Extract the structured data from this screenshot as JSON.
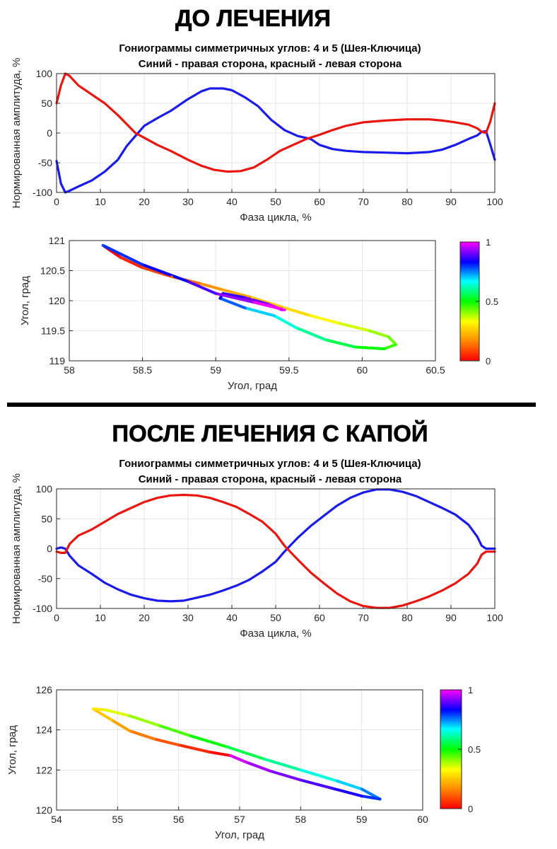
{
  "sections": [
    {
      "heading": "ДО ЛЕЧЕНИЯ"
    },
    {
      "heading": "ПОСЛЕ ЛЕЧЕНИЯ С КАПОЙ"
    }
  ],
  "colors": {
    "right_side": "#1a1aeb",
    "left_side": "#e8160f",
    "grid": "#e3e3e3",
    "axis": "#262626",
    "separator": "#000000"
  },
  "chart_data": [
    {
      "type": "line",
      "title": "Гониограммы симметричных углов:  4 и 5  (Шея-Ключица)",
      "subtitle": "Синий - правая сторона, красный - левая сторона",
      "xlabel": "Фаза цикла, %",
      "ylabel": "Нормированная амплитуда, %",
      "xlim": [
        0,
        100
      ],
      "ylim": [
        -100,
        100
      ],
      "xticks": [
        "0",
        "10",
        "20",
        "30",
        "40",
        "50",
        "60",
        "70",
        "80",
        "90",
        "100"
      ],
      "yticks": [
        "-100",
        "-50",
        "0",
        "50",
        "100"
      ],
      "grid": true,
      "series": [
        {
          "color": "#1a1aeb",
          "points": [
            [
              0,
              -47
            ],
            [
              1,
              -85
            ],
            [
              2,
              -100
            ],
            [
              3,
              -97
            ],
            [
              5,
              -90
            ],
            [
              8,
              -80
            ],
            [
              11,
              -65
            ],
            [
              14,
              -45
            ],
            [
              16,
              -22
            ],
            [
              18,
              -5
            ],
            [
              20,
              12
            ],
            [
              23,
              25
            ],
            [
              26,
              37
            ],
            [
              30,
              57
            ],
            [
              33,
              70
            ],
            [
              35,
              75
            ],
            [
              38,
              75
            ],
            [
              40,
              72
            ],
            [
              43,
              60
            ],
            [
              46,
              45
            ],
            [
              49,
              22
            ],
            [
              52,
              5
            ],
            [
              55,
              -5
            ],
            [
              58,
              -10
            ],
            [
              60,
              -20
            ],
            [
              63,
              -27
            ],
            [
              66,
              -30
            ],
            [
              70,
              -32
            ],
            [
              75,
              -33
            ],
            [
              80,
              -34
            ],
            [
              85,
              -32
            ],
            [
              88,
              -28
            ],
            [
              91,
              -20
            ],
            [
              94,
              -10
            ],
            [
              96,
              -4
            ],
            [
              97,
              2
            ],
            [
              98,
              3
            ],
            [
              99,
              -20
            ],
            [
              100,
              -45
            ]
          ]
        },
        {
          "color": "#e8160f",
          "points": [
            [
              0,
              50
            ],
            [
              1,
              80
            ],
            [
              2,
              100
            ],
            [
              3,
              96
            ],
            [
              5,
              80
            ],
            [
              8,
              65
            ],
            [
              11,
              50
            ],
            [
              14,
              30
            ],
            [
              16,
              15
            ],
            [
              18,
              0
            ],
            [
              20,
              -8
            ],
            [
              23,
              -20
            ],
            [
              26,
              -30
            ],
            [
              30,
              -45
            ],
            [
              33,
              -55
            ],
            [
              36,
              -62
            ],
            [
              39,
              -65
            ],
            [
              42,
              -64
            ],
            [
              45,
              -58
            ],
            [
              48,
              -45
            ],
            [
              51,
              -30
            ],
            [
              54,
              -20
            ],
            [
              57,
              -10
            ],
            [
              60,
              -3
            ],
            [
              63,
              5
            ],
            [
              66,
              12
            ],
            [
              70,
              18
            ],
            [
              75,
              21
            ],
            [
              80,
              23
            ],
            [
              85,
              23
            ],
            [
              88,
              21
            ],
            [
              91,
              18
            ],
            [
              94,
              14
            ],
            [
              96,
              8
            ],
            [
              97,
              2
            ],
            [
              98,
              0
            ],
            [
              99,
              20
            ],
            [
              100,
              50
            ]
          ]
        }
      ]
    },
    {
      "type": "scatter",
      "xlabel": "Угол, град",
      "ylabel": "Угол, град",
      "xlim": [
        58,
        60.5
      ],
      "ylim": [
        119,
        121
      ],
      "xticks": [
        "58",
        "58.5",
        "59",
        "59.5",
        "60",
        "60.5"
      ],
      "yticks": [
        "119",
        "119.5",
        "120",
        "120.5",
        "121"
      ],
      "grid": true,
      "colorbar": {
        "min": 0,
        "max": 1,
        "ticks": [
          "0",
          "0.5",
          "1"
        ]
      },
      "points": [
        [
          58.23,
          120.92,
          0.0
        ],
        [
          58.35,
          120.72,
          0.04
        ],
        [
          58.5,
          120.55,
          0.08
        ],
        [
          58.7,
          120.4,
          0.13
        ],
        [
          58.9,
          120.28,
          0.18
        ],
        [
          59.05,
          120.18,
          0.21
        ],
        [
          59.25,
          120.05,
          0.25
        ],
        [
          59.47,
          119.88,
          0.28
        ],
        [
          59.65,
          119.75,
          0.32
        ],
        [
          59.85,
          119.62,
          0.36
        ],
        [
          60.05,
          119.5,
          0.4
        ],
        [
          60.18,
          119.4,
          0.43
        ],
        [
          60.23,
          119.27,
          0.46
        ],
        [
          60.15,
          119.2,
          0.5
        ],
        [
          59.95,
          119.23,
          0.55
        ],
        [
          59.75,
          119.35,
          0.6
        ],
        [
          59.55,
          119.55,
          0.65
        ],
        [
          59.4,
          119.75,
          0.7
        ],
        [
          59.2,
          119.88,
          0.77
        ],
        [
          59.03,
          120.04,
          0.83
        ],
        [
          59.05,
          120.12,
          0.86
        ],
        [
          59.2,
          120.05,
          0.9
        ],
        [
          59.35,
          119.95,
          0.94
        ],
        [
          59.45,
          119.85,
          0.97
        ],
        [
          59.47,
          119.85,
          1.0
        ],
        [
          59.25,
          119.98,
          0.93
        ],
        [
          59.0,
          120.12,
          0.88
        ],
        [
          58.8,
          120.33,
          0.83
        ],
        [
          58.5,
          120.6,
          0.8
        ],
        [
          58.23,
          120.92,
          0.77
        ]
      ]
    },
    {
      "type": "line",
      "title": "Гониограммы симметричных углов:  4 и 5  (Шея-Ключица)",
      "subtitle": "Синий - правая сторона, красный - левая сторона",
      "xlabel": "Фаза цикла, %",
      "ylabel": "Нормированная амплитуда, %",
      "xlim": [
        0,
        100
      ],
      "ylim": [
        -100,
        100
      ],
      "xticks": [
        "0",
        "10",
        "20",
        "30",
        "40",
        "50",
        "60",
        "70",
        "80",
        "90",
        "100"
      ],
      "yticks": [
        "-100",
        "-50",
        "0",
        "50",
        "100"
      ],
      "grid": true,
      "series": [
        {
          "color": "#1a1aeb",
          "points": [
            [
              0,
              0
            ],
            [
              1,
              2
            ],
            [
              2,
              0
            ],
            [
              3,
              -12
            ],
            [
              5,
              -28
            ],
            [
              8,
              -42
            ],
            [
              11,
              -57
            ],
            [
              14,
              -68
            ],
            [
              17,
              -77
            ],
            [
              20,
              -83
            ],
            [
              23,
              -87
            ],
            [
              26,
              -88
            ],
            [
              29,
              -87
            ],
            [
              32,
              -82
            ],
            [
              35,
              -77
            ],
            [
              38,
              -70
            ],
            [
              41,
              -62
            ],
            [
              44,
              -52
            ],
            [
              47,
              -38
            ],
            [
              50,
              -22
            ],
            [
              52,
              -5
            ],
            [
              55,
              18
            ],
            [
              58,
              38
            ],
            [
              61,
              55
            ],
            [
              64,
              72
            ],
            [
              67,
              85
            ],
            [
              70,
              94
            ],
            [
              73,
              99
            ],
            [
              76,
              99
            ],
            [
              79,
              95
            ],
            [
              82,
              88
            ],
            [
              85,
              78
            ],
            [
              88,
              68
            ],
            [
              91,
              57
            ],
            [
              94,
              40
            ],
            [
              96,
              20
            ],
            [
              97,
              5
            ],
            [
              98,
              0
            ],
            [
              100,
              0
            ]
          ]
        },
        {
          "color": "#e8160f",
          "points": [
            [
              0,
              -5
            ],
            [
              1,
              -7
            ],
            [
              2,
              -7
            ],
            [
              3,
              8
            ],
            [
              5,
              22
            ],
            [
              8,
              32
            ],
            [
              11,
              45
            ],
            [
              14,
              58
            ],
            [
              17,
              68
            ],
            [
              20,
              78
            ],
            [
              23,
              85
            ],
            [
              26,
              89
            ],
            [
              29,
              90
            ],
            [
              32,
              89
            ],
            [
              35,
              85
            ],
            [
              38,
              78
            ],
            [
              41,
              70
            ],
            [
              44,
              58
            ],
            [
              47,
              45
            ],
            [
              50,
              25
            ],
            [
              52,
              5
            ],
            [
              55,
              -18
            ],
            [
              58,
              -40
            ],
            [
              61,
              -58
            ],
            [
              64,
              -75
            ],
            [
              67,
              -88
            ],
            [
              70,
              -96
            ],
            [
              73,
              -99
            ],
            [
              76,
              -99
            ],
            [
              79,
              -95
            ],
            [
              82,
              -88
            ],
            [
              85,
              -80
            ],
            [
              88,
              -70
            ],
            [
              91,
              -58
            ],
            [
              94,
              -42
            ],
            [
              96,
              -25
            ],
            [
              97,
              -10
            ],
            [
              98,
              -5
            ],
            [
              100,
              -5
            ]
          ]
        }
      ]
    },
    {
      "type": "scatter",
      "xlabel": "Угол, град",
      "ylabel": "Угол, град",
      "xlim": [
        54,
        60
      ],
      "ylim": [
        120,
        126
      ],
      "xticks": [
        "54",
        "55",
        "56",
        "57",
        "58",
        "59",
        "60"
      ],
      "yticks": [
        "120",
        "122",
        "124",
        "126"
      ],
      "grid": true,
      "colorbar": {
        "min": 0,
        "max": 1,
        "ticks": [
          "0",
          "0.5",
          "1"
        ]
      },
      "points": [
        [
          56.85,
          122.72,
          0.0
        ],
        [
          56.5,
          122.9,
          0.05
        ],
        [
          56.0,
          123.25,
          0.1
        ],
        [
          55.6,
          123.55,
          0.15
        ],
        [
          55.2,
          123.95,
          0.2
        ],
        [
          54.9,
          124.5,
          0.25
        ],
        [
          54.6,
          125.05,
          0.3
        ],
        [
          54.8,
          125.0,
          0.35
        ],
        [
          55.2,
          124.7,
          0.4
        ],
        [
          55.7,
          124.2,
          0.45
        ],
        [
          56.2,
          123.7,
          0.5
        ],
        [
          56.8,
          123.15,
          0.55
        ],
        [
          57.4,
          122.55,
          0.6
        ],
        [
          58.0,
          122.0,
          0.65
        ],
        [
          58.6,
          121.45,
          0.7
        ],
        [
          59.0,
          121.05,
          0.75
        ],
        [
          59.3,
          120.55,
          0.8
        ],
        [
          59.0,
          120.7,
          0.85
        ],
        [
          58.5,
          121.1,
          0.88
        ],
        [
          58.0,
          121.5,
          0.91
        ],
        [
          57.5,
          121.95,
          0.94
        ],
        [
          57.1,
          122.4,
          0.97
        ],
        [
          56.85,
          122.72,
          1.0
        ]
      ]
    }
  ]
}
